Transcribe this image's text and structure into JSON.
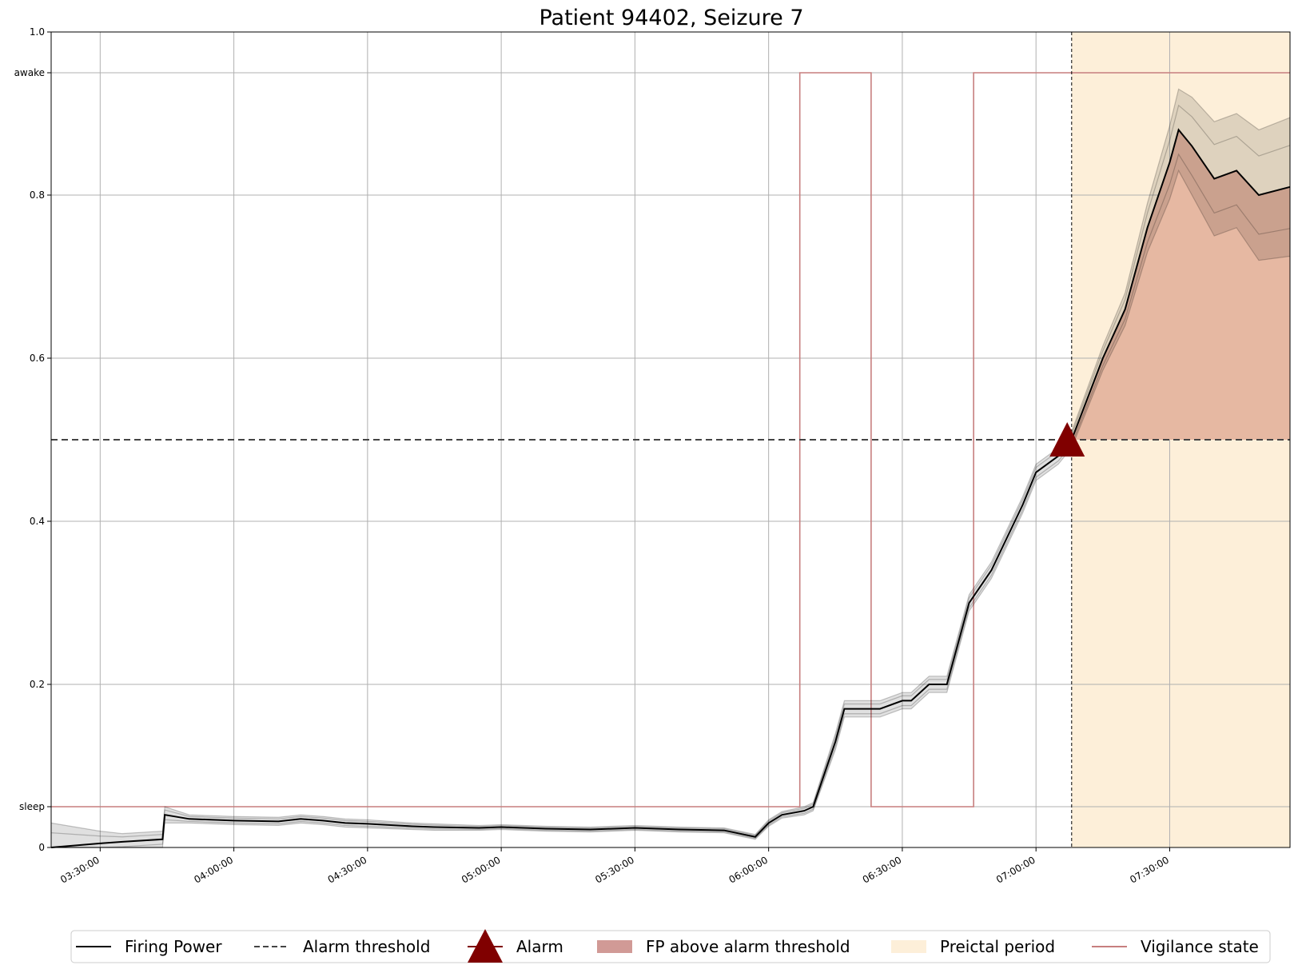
{
  "chart_data": {
    "type": "line",
    "title": "Patient 94402, Seizure 7",
    "xlabel": "",
    "ylabel": "",
    "xlim": [
      "03:19:00",
      "07:57:00"
    ],
    "ylim": [
      0,
      1.0
    ],
    "grid": true,
    "x_ticks": [
      "03:30:00",
      "04:00:00",
      "04:30:00",
      "05:00:00",
      "05:30:00",
      "06:00:00",
      "06:30:00",
      "07:00:00",
      "07:30:00"
    ],
    "y_ticks": [
      {
        "value": 0,
        "label": "0"
      },
      {
        "value": 0.05,
        "label": "sleep"
      },
      {
        "value": 0.2,
        "label": "0.2"
      },
      {
        "value": 0.4,
        "label": "0.4"
      },
      {
        "value": 0.6,
        "label": "0.6"
      },
      {
        "value": 0.8,
        "label": "0.8"
      },
      {
        "value": 0.95,
        "label": "awake"
      },
      {
        "value": 1.0,
        "label": "1.0"
      }
    ],
    "alarm_threshold": 0.5,
    "preictal_period": {
      "start": "07:08:00",
      "end": "07:57:00"
    },
    "alarm": {
      "time": "07:07:00",
      "value": 0.5
    },
    "colors": {
      "firing_power": "#000000",
      "threshold": "#444444",
      "alarm": "#800000",
      "fp_fill": "#d19a96",
      "preictal": "#fdefd9",
      "vigilance": "#c77f7f"
    },
    "firing_power": {
      "times": [
        "03:19:00",
        "03:30:00",
        "03:35:00",
        "03:44:00",
        "03:44:30",
        "03:50:00",
        "04:00:00",
        "04:10:00",
        "04:15:00",
        "04:20:00",
        "04:25:00",
        "04:30:00",
        "04:40:00",
        "04:45:00",
        "04:55:00",
        "05:00:00",
        "05:10:00",
        "05:20:00",
        "05:30:00",
        "05:40:00",
        "05:50:00",
        "05:57:00",
        "06:00:00",
        "06:03:00",
        "06:08:00",
        "06:10:00",
        "06:15:00",
        "06:17:00",
        "06:25:00",
        "06:30:00",
        "06:32:00",
        "06:36:00",
        "06:40:00",
        "06:45:00",
        "06:50:00",
        "06:57:00",
        "07:00:00",
        "07:05:00",
        "07:08:00",
        "07:15:00",
        "07:20:00",
        "07:25:00",
        "07:30:00",
        "07:32:00",
        "07:35:00",
        "07:40:00",
        "07:45:00",
        "07:50:00",
        "07:57:00"
      ],
      "values": [
        0.0,
        0.005,
        0.007,
        0.01,
        0.04,
        0.035,
        0.033,
        0.032,
        0.035,
        0.033,
        0.03,
        0.029,
        0.026,
        0.025,
        0.024,
        0.025,
        0.023,
        0.022,
        0.024,
        0.022,
        0.021,
        0.013,
        0.03,
        0.04,
        0.045,
        0.05,
        0.13,
        0.17,
        0.17,
        0.18,
        0.18,
        0.2,
        0.2,
        0.3,
        0.34,
        0.42,
        0.46,
        0.48,
        0.5,
        0.6,
        0.66,
        0.76,
        0.84,
        0.88,
        0.86,
        0.82,
        0.83,
        0.8,
        0.81
      ]
    },
    "firing_power_ensemble_spread": [
      0.06,
      0.03,
      0.02,
      0.02,
      0.02,
      0.01,
      0.01,
      0.01,
      0.01,
      0.01,
      0.01,
      0.01,
      0.008,
      0.008,
      0.006,
      0.006,
      0.006,
      0.006,
      0.006,
      0.006,
      0.006,
      0.006,
      0.008,
      0.008,
      0.01,
      0.01,
      0.02,
      0.02,
      0.02,
      0.02,
      0.02,
      0.02,
      0.02,
      0.02,
      0.02,
      0.02,
      0.02,
      0.02,
      0.02,
      0.03,
      0.04,
      0.06,
      0.09,
      0.1,
      0.12,
      0.14,
      0.14,
      0.16,
      0.17
    ],
    "vigilance_state": {
      "times": [
        "03:19:00",
        "06:07:00",
        "06:07:00",
        "06:23:00",
        "06:23:00",
        "06:46:00",
        "06:46:00",
        "07:57:00"
      ],
      "values": [
        "sleep",
        "sleep",
        "awake",
        "awake",
        "sleep",
        "sleep",
        "awake",
        "awake"
      ]
    },
    "legend": {
      "position": "bottom",
      "entries": [
        "Firing Power",
        "Alarm threshold",
        "Alarm",
        "FP above alarm threshold",
        "Preictal period",
        "Vigilance state"
      ]
    }
  }
}
